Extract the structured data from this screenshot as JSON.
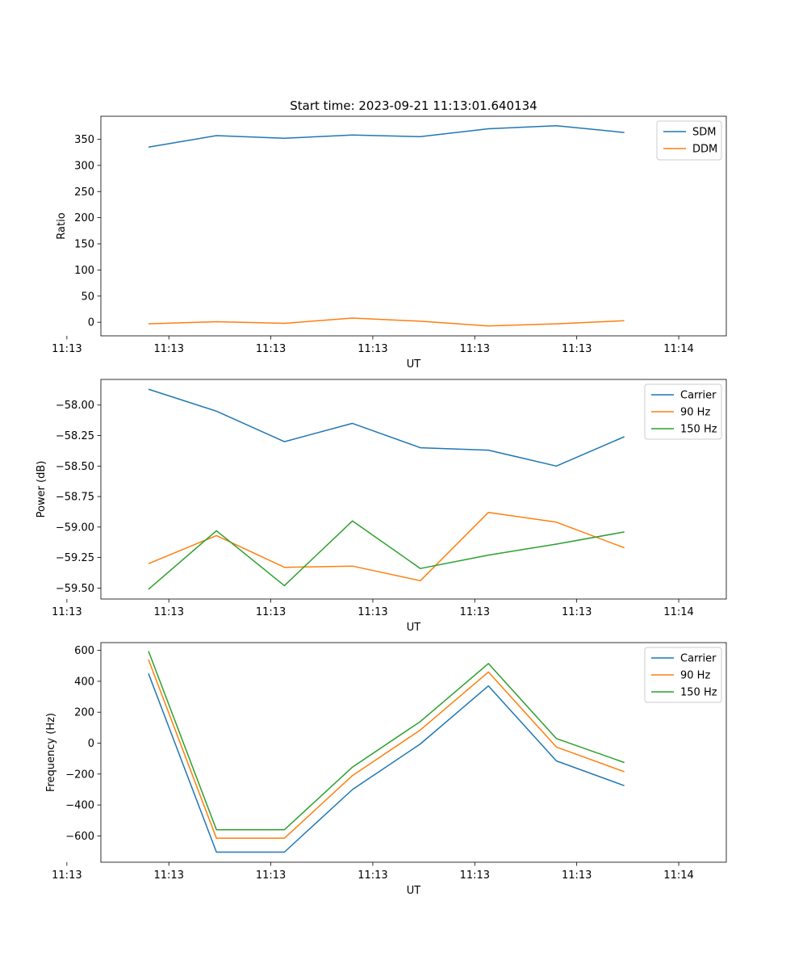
{
  "figure_title": "Start time: 2023-09-21 11:13:01.640134",
  "colors": {
    "c0": "#1f77b4",
    "c1": "#ff7f0e",
    "c2": "#2ca02c",
    "axis": "#000000",
    "legend_border": "#cccccc"
  },
  "chart_data": [
    {
      "type": "line",
      "id": "ratio",
      "title": "Start time: 2023-09-21 11:13:01.640134",
      "xlabel": "UT",
      "ylabel": "Ratio",
      "x_tick_labels": [
        "11:13",
        "11:13",
        "11:13",
        "11:13",
        "11:13",
        "11:13",
        "11:14"
      ],
      "ylim": [
        -26,
        394
      ],
      "y_ticks": [
        0,
        50,
        100,
        150,
        200,
        250,
        300,
        350
      ],
      "y_tick_labels": [
        "0",
        "50",
        "100",
        "150",
        "200",
        "250",
        "300",
        "350"
      ],
      "legend_position": "top-right",
      "series": [
        {
          "name": "SDM",
          "color": "#1f77b4",
          "values": [
            335,
            357,
            352,
            358,
            355,
            370,
            376,
            363
          ]
        },
        {
          "name": "DDM",
          "color": "#ff7f0e",
          "values": [
            -3,
            1,
            -2,
            8,
            2,
            -7,
            -3,
            3
          ]
        }
      ]
    },
    {
      "type": "line",
      "id": "power",
      "title": "",
      "xlabel": "UT",
      "ylabel": "Power (dB)",
      "x_tick_labels": [
        "11:13",
        "11:13",
        "11:13",
        "11:13",
        "11:13",
        "11:13",
        "11:14"
      ],
      "ylim": [
        -59.59,
        -57.79
      ],
      "y_ticks": [
        -59.5,
        -59.25,
        -59.0,
        -58.75,
        -58.5,
        -58.25,
        -58.0
      ],
      "y_tick_labels": [
        "−59.50",
        "−59.25",
        "−59.00",
        "−58.75",
        "−58.50",
        "−58.25",
        "−58.00"
      ],
      "legend_position": "top-right",
      "series": [
        {
          "name": "Carrier",
          "color": "#1f77b4",
          "values": [
            -57.87,
            -58.05,
            -58.3,
            -58.15,
            -58.35,
            -58.37,
            -58.5,
            -58.26
          ]
        },
        {
          "name": "90 Hz",
          "color": "#ff7f0e",
          "values": [
            -59.3,
            -59.07,
            -59.33,
            -59.32,
            -59.44,
            -58.88,
            -58.96,
            -59.17
          ]
        },
        {
          "name": "150 Hz",
          "color": "#2ca02c",
          "values": [
            -59.51,
            -59.03,
            -59.48,
            -58.95,
            -59.34,
            -59.23,
            -59.14,
            -59.04
          ]
        }
      ]
    },
    {
      "type": "line",
      "id": "frequency",
      "title": "",
      "xlabel": "UT",
      "ylabel": "Frequency (Hz)",
      "x_tick_labels": [
        "11:13",
        "11:13",
        "11:13",
        "11:13",
        "11:13",
        "11:13",
        "11:14"
      ],
      "ylim": [
        -770,
        650
      ],
      "y_ticks": [
        -600,
        -400,
        -200,
        0,
        200,
        400,
        600
      ],
      "y_tick_labels": [
        "−600",
        "−400",
        "−200",
        "0",
        "200",
        "400",
        "600"
      ],
      "legend_position": "top-right",
      "series": [
        {
          "name": "Carrier",
          "color": "#1f77b4",
          "values": [
            450,
            -705,
            -705,
            -300,
            -5,
            370,
            -115,
            -275
          ]
        },
        {
          "name": "90 Hz",
          "color": "#ff7f0e",
          "values": [
            540,
            -615,
            -615,
            -210,
            85,
            460,
            -25,
            -185
          ]
        },
        {
          "name": "150 Hz",
          "color": "#2ca02c",
          "values": [
            595,
            -560,
            -560,
            -155,
            140,
            515,
            30,
            -125
          ]
        }
      ]
    }
  ]
}
